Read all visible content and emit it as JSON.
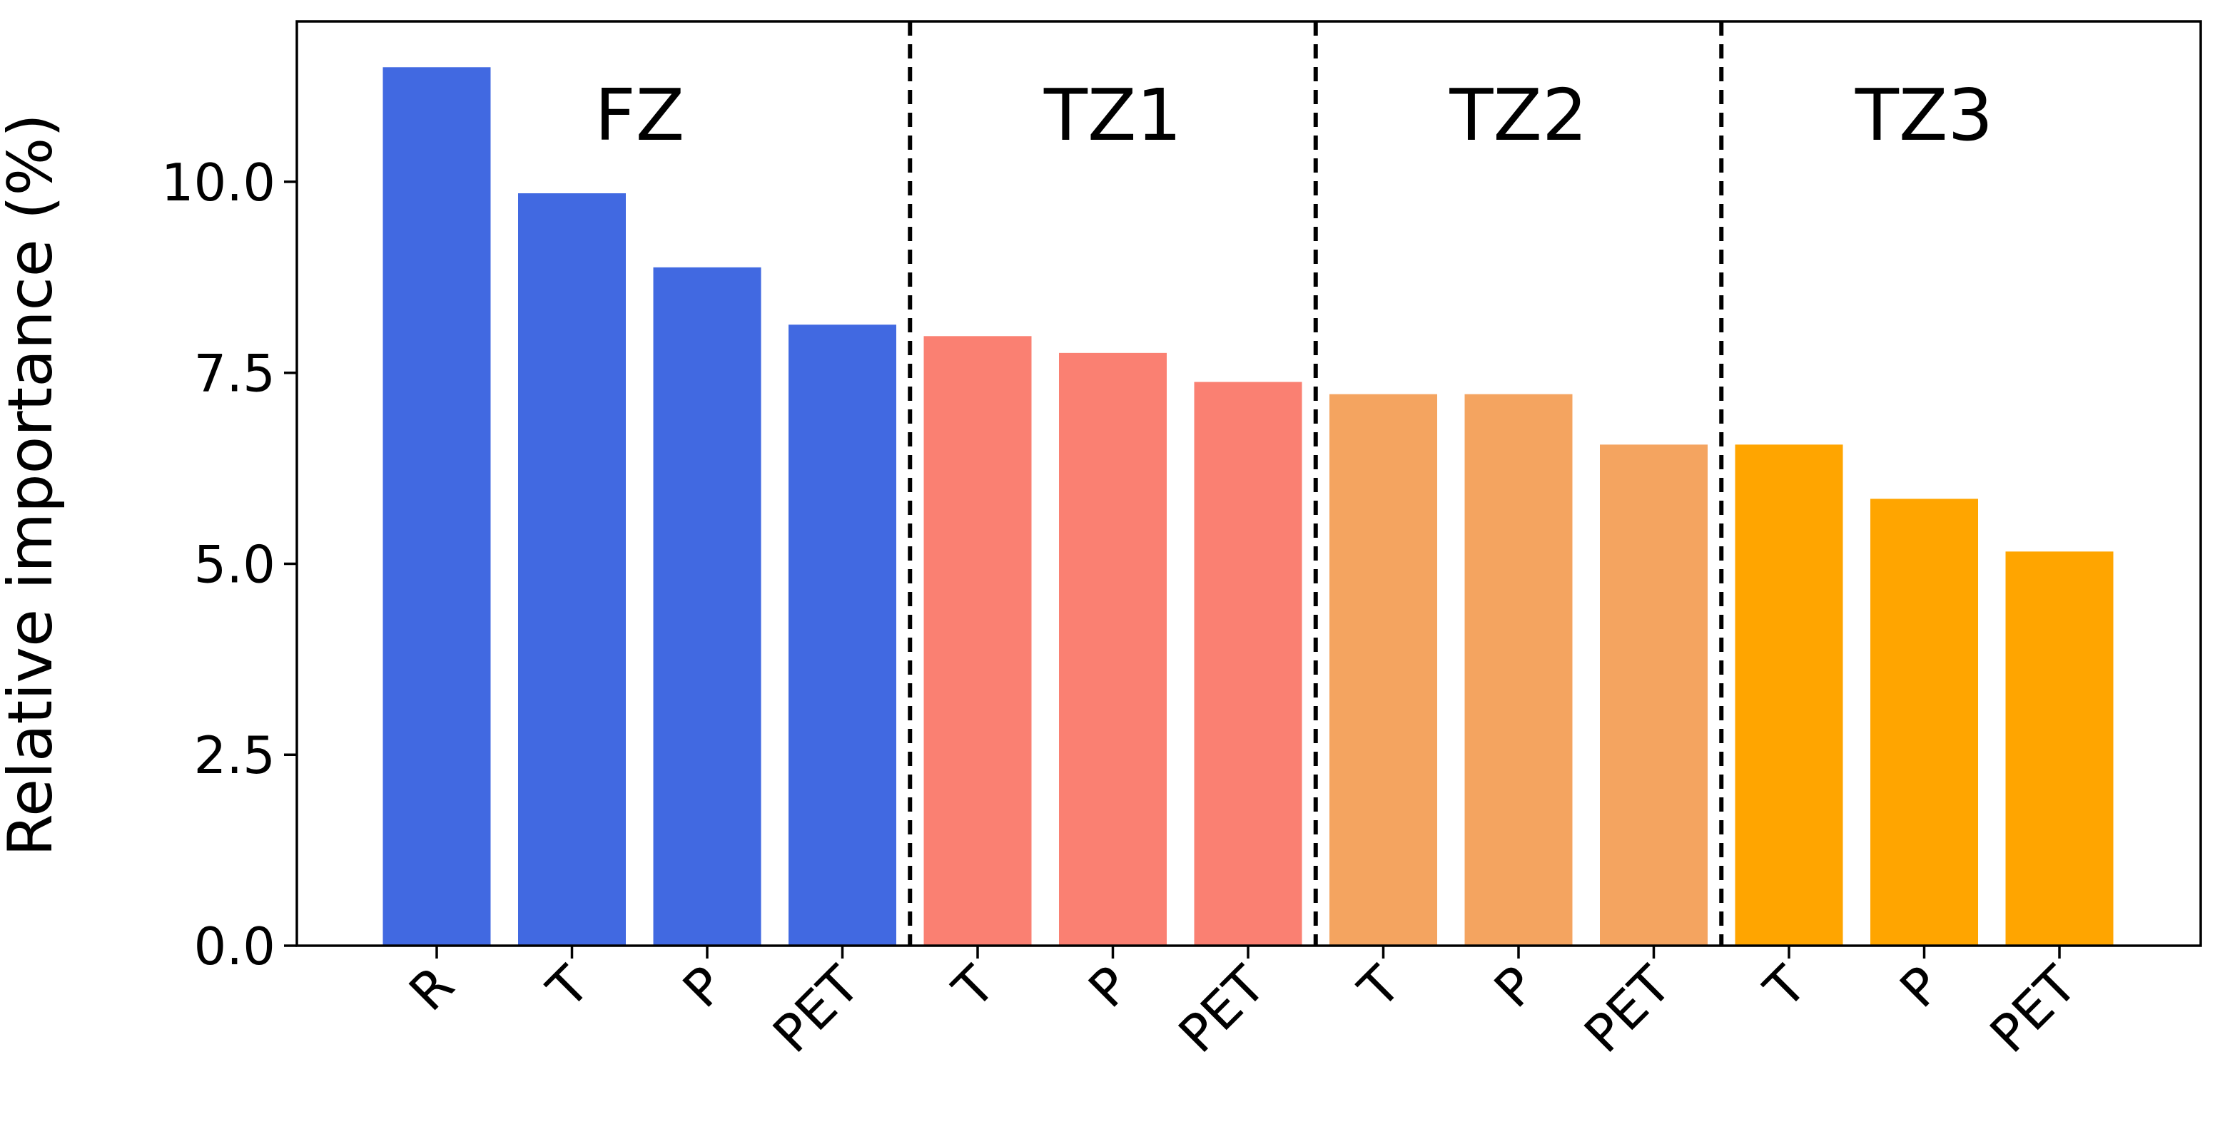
{
  "chart_data": {
    "type": "bar",
    "ylabel": "Relative importance (%)",
    "xlabel": "",
    "title": "",
    "ylim": [
      0,
      12.1
    ],
    "yticks": [
      "0.0",
      "2.5",
      "5.0",
      "7.5",
      "10.0"
    ],
    "grid": false,
    "categories": [
      "R",
      "T",
      "P",
      "PET",
      "T",
      "P",
      "PET",
      "T",
      "P",
      "PET",
      "T",
      "P",
      "PET"
    ],
    "values": [
      11.5,
      9.85,
      8.88,
      8.13,
      7.98,
      7.76,
      7.38,
      7.22,
      7.22,
      6.56,
      6.56,
      5.85,
      5.16
    ],
    "groups": [
      {
        "label": "FZ",
        "color": "#4169E1",
        "start": 0,
        "count": 4
      },
      {
        "label": "TZ1",
        "color": "#FA8072",
        "start": 4,
        "count": 3
      },
      {
        "label": "TZ2",
        "color": "#F4A460",
        "start": 7,
        "count": 3
      },
      {
        "label": "TZ3",
        "color": "#FFA500",
        "start": 10,
        "count": 3
      }
    ],
    "separators": "dashed vertical lines between groups"
  }
}
